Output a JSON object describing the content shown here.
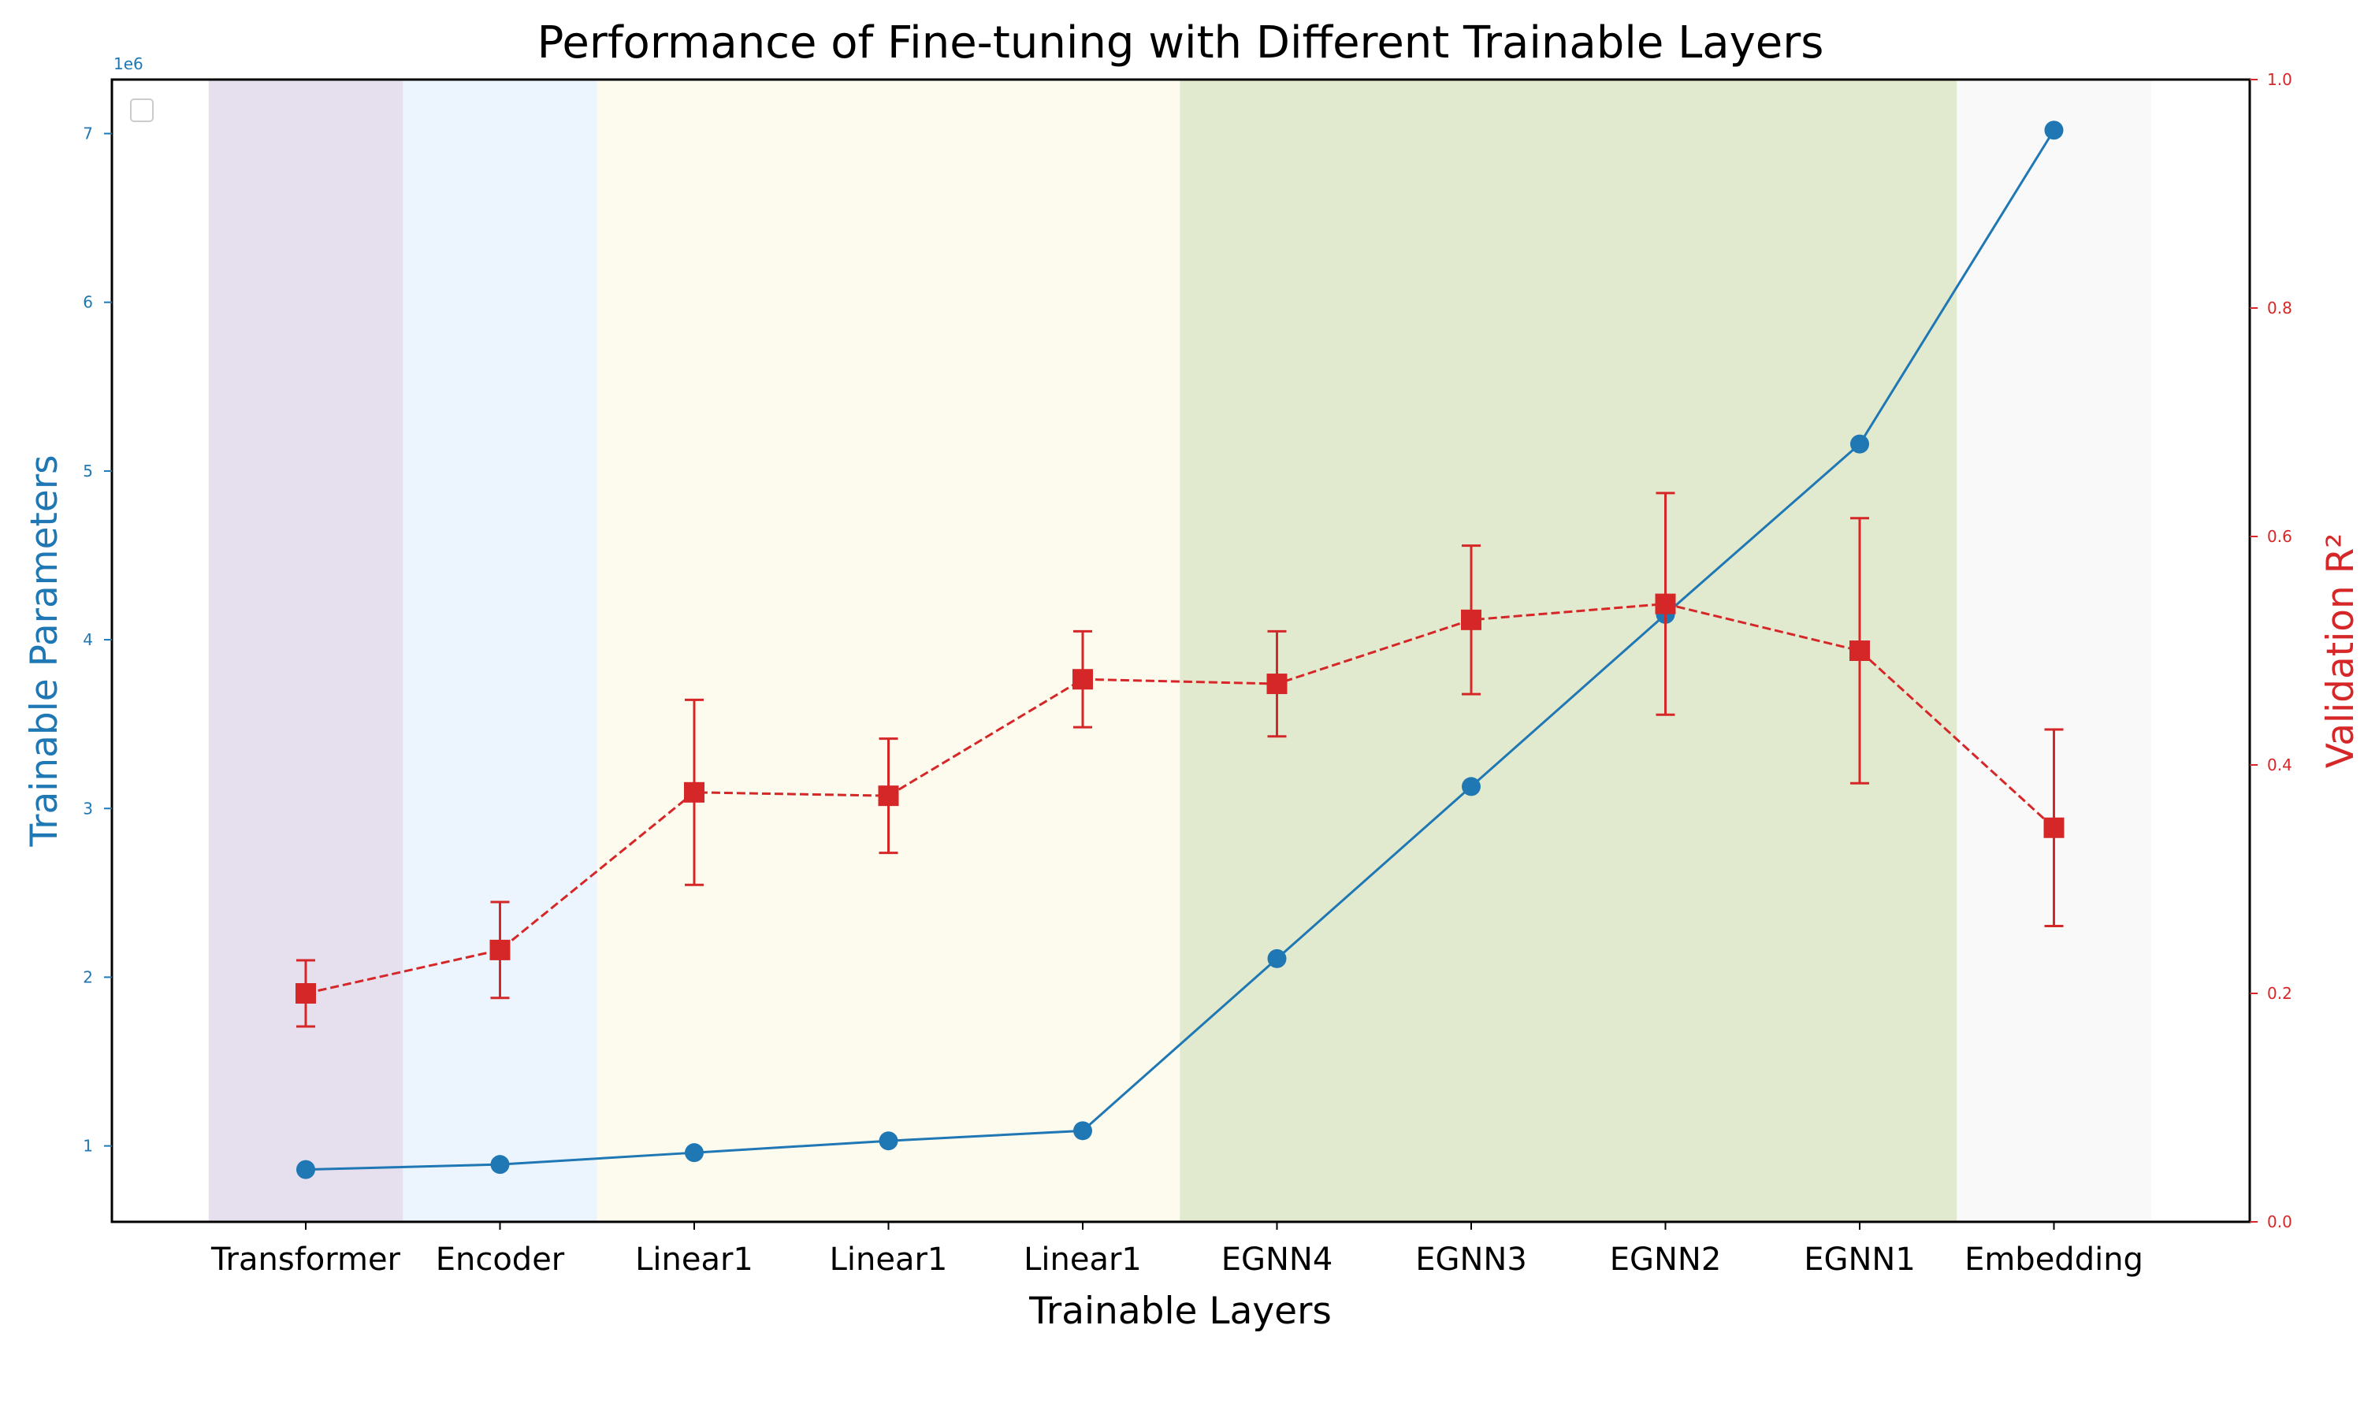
{
  "chart_data": {
    "type": "line",
    "title": "Performance of Fine-tuning with Different Trainable Layers",
    "xlabel": "Trainable Layers",
    "categories": [
      "Transformer",
      "Encoder",
      "Linear1",
      "Linear1",
      "Linear1",
      "EGNN4",
      "EGNN3",
      "EGNN2",
      "EGNN1",
      "Embedding"
    ],
    "region_colors": [
      "#e6e0ee",
      "#ecf5fe",
      "#fdfaee",
      "#fdfaee",
      "#fdfaee",
      "#e1eacf",
      "#e1eacf",
      "#e1eacf",
      "#e1eacf",
      "#f9f9f9"
    ],
    "left_axis": {
      "label": "Trainable Parameters",
      "color": "#1f77b4",
      "multiplier_label": "1e6",
      "ylim": [
        0.55,
        7.32
      ],
      "ticks": [
        1,
        2,
        3,
        4,
        5,
        6,
        7
      ],
      "tick_labels": [
        "1",
        "2",
        "3",
        "4",
        "5",
        "6",
        "7"
      ]
    },
    "right_axis": {
      "label": "Validation R²",
      "color": "#d62728",
      "ylim": [
        0.0,
        1.0
      ],
      "ticks": [
        0.0,
        0.2,
        0.4,
        0.6,
        0.8,
        1.0
      ],
      "tick_labels": [
        "0.0",
        "0.2",
        "0.4",
        "0.6",
        "0.8",
        "1.0"
      ]
    },
    "series": [
      {
        "axis": "left",
        "color": "#1f77b4",
        "marker": "circle",
        "linestyle": "solid",
        "values": [
          0.86,
          0.89,
          0.96,
          1.03,
          1.09,
          2.11,
          3.13,
          4.15,
          5.16,
          7.02
        ]
      },
      {
        "axis": "right",
        "color": "#d62728",
        "marker": "square",
        "linestyle": "dashed",
        "values": [
          0.2,
          0.238,
          0.376,
          0.373,
          0.475,
          0.471,
          0.527,
          0.541,
          0.5,
          0.345
        ],
        "error": [
          0.029,
          0.042,
          0.081,
          0.05,
          0.042,
          0.046,
          0.065,
          0.097,
          0.116,
          0.086
        ]
      }
    ],
    "grid": false,
    "legend": "top-left"
  }
}
